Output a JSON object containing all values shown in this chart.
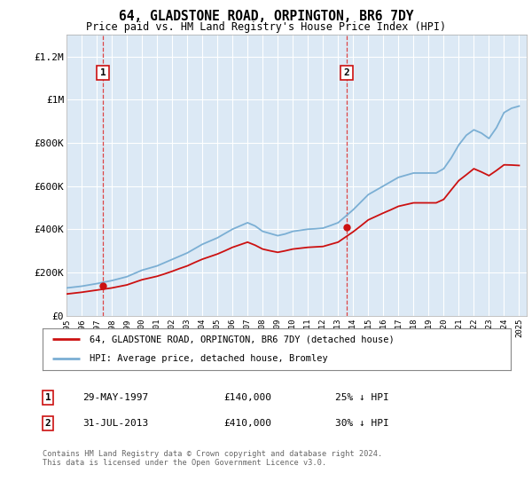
{
  "title": "64, GLADSTONE ROAD, ORPINGTON, BR6 7DY",
  "subtitle": "Price paid vs. HM Land Registry's House Price Index (HPI)",
  "ylim": [
    0,
    1300000
  ],
  "yticks": [
    0,
    200000,
    400000,
    600000,
    800000,
    1000000,
    1200000
  ],
  "ytick_labels": [
    "£0",
    "£200K",
    "£400K",
    "£600K",
    "£800K",
    "£1M",
    "£1.2M"
  ],
  "bg_color": "#dce9f5",
  "grid_color": "#ffffff",
  "transaction1": {
    "date": "1997-05-29",
    "price": 140000,
    "label": "1",
    "x": 1997.41
  },
  "transaction2": {
    "date": "2013-07-31",
    "price": 410000,
    "label": "2",
    "x": 2013.58
  },
  "legend_label_red": "64, GLADSTONE ROAD, ORPINGTON, BR6 7DY (detached house)",
  "legend_label_blue": "HPI: Average price, detached house, Bromley",
  "note1_label": "1",
  "note1_date": "29-MAY-1997",
  "note1_price": "£140,000",
  "note1_hpi": "25% ↓ HPI",
  "note2_label": "2",
  "note2_date": "31-JUL-2013",
  "note2_price": "£410,000",
  "note2_hpi": "30% ↓ HPI",
  "footer": "Contains HM Land Registry data © Crown copyright and database right 2024.\nThis data is licensed under the Open Government Licence v3.0.",
  "hpi_years": [
    1995,
    1995.5,
    1996,
    1996.5,
    1997,
    1997.5,
    1998,
    1998.5,
    1999,
    1999.5,
    2000,
    2000.5,
    2001,
    2001.5,
    2002,
    2002.5,
    2003,
    2003.5,
    2004,
    2004.5,
    2005,
    2005.5,
    2006,
    2006.5,
    2007,
    2007.5,
    2008,
    2008.5,
    2009,
    2009.5,
    2010,
    2010.5,
    2011,
    2011.5,
    2012,
    2012.5,
    2013,
    2013.5,
    2014,
    2014.5,
    2015,
    2015.5,
    2016,
    2016.5,
    2017,
    2017.5,
    2018,
    2018.5,
    2019,
    2019.5,
    2020,
    2020.5,
    2021,
    2021.5,
    2022,
    2022.5,
    2023,
    2023.5,
    2024,
    2024.5,
    2025
  ],
  "hpi_values": [
    128000,
    132000,
    136000,
    142000,
    148000,
    155000,
    162000,
    171000,
    180000,
    195000,
    210000,
    220000,
    230000,
    245000,
    260000,
    275000,
    290000,
    310000,
    330000,
    345000,
    360000,
    380000,
    400000,
    415000,
    430000,
    415000,
    390000,
    380000,
    370000,
    378000,
    390000,
    395000,
    400000,
    402000,
    405000,
    417000,
    430000,
    460000,
    490000,
    525000,
    560000,
    580000,
    600000,
    620000,
    640000,
    650000,
    660000,
    660000,
    660000,
    660000,
    680000,
    730000,
    790000,
    835000,
    860000,
    845000,
    820000,
    870000,
    940000,
    960000,
    970000
  ],
  "red_years": [
    1995,
    1995.5,
    1996,
    1996.5,
    1997,
    1997.5,
    1998,
    1998.5,
    1999,
    1999.5,
    2000,
    2000.5,
    2001,
    2001.5,
    2002,
    2002.5,
    2003,
    2003.5,
    2004,
    2004.5,
    2005,
    2005.5,
    2006,
    2006.5,
    2007,
    2007.5,
    2008,
    2008.5,
    2009,
    2009.5,
    2010,
    2010.5,
    2011,
    2011.5,
    2012,
    2012.5,
    2013,
    2013.5,
    2014,
    2014.5,
    2015,
    2015.5,
    2016,
    2016.5,
    2017,
    2017.5,
    2018,
    2018.5,
    2019,
    2019.5,
    2020,
    2020.5,
    2021,
    2021.5,
    2022,
    2022.5,
    2023,
    2023.5,
    2024,
    2024.5,
    2025
  ],
  "red_values": [
    100000,
    104000,
    108000,
    113000,
    118000,
    123000,
    128000,
    135000,
    142000,
    154000,
    166000,
    174000,
    182000,
    193000,
    205000,
    218000,
    230000,
    246000,
    261000,
    273000,
    285000,
    300000,
    316000,
    328000,
    340000,
    326000,
    308000,
    300000,
    293000,
    300000,
    308000,
    312000,
    316000,
    318000,
    320000,
    330000,
    340000,
    364000,
    388000,
    415000,
    443000,
    459000,
    475000,
    490000,
    506000,
    514000,
    522000,
    522000,
    522000,
    522000,
    538000,
    582000,
    625000,
    652000,
    680000,
    665000,
    648000,
    672000,
    698000,
    697000,
    695000
  ],
  "xmin": 1995,
  "xmax": 2025.5
}
